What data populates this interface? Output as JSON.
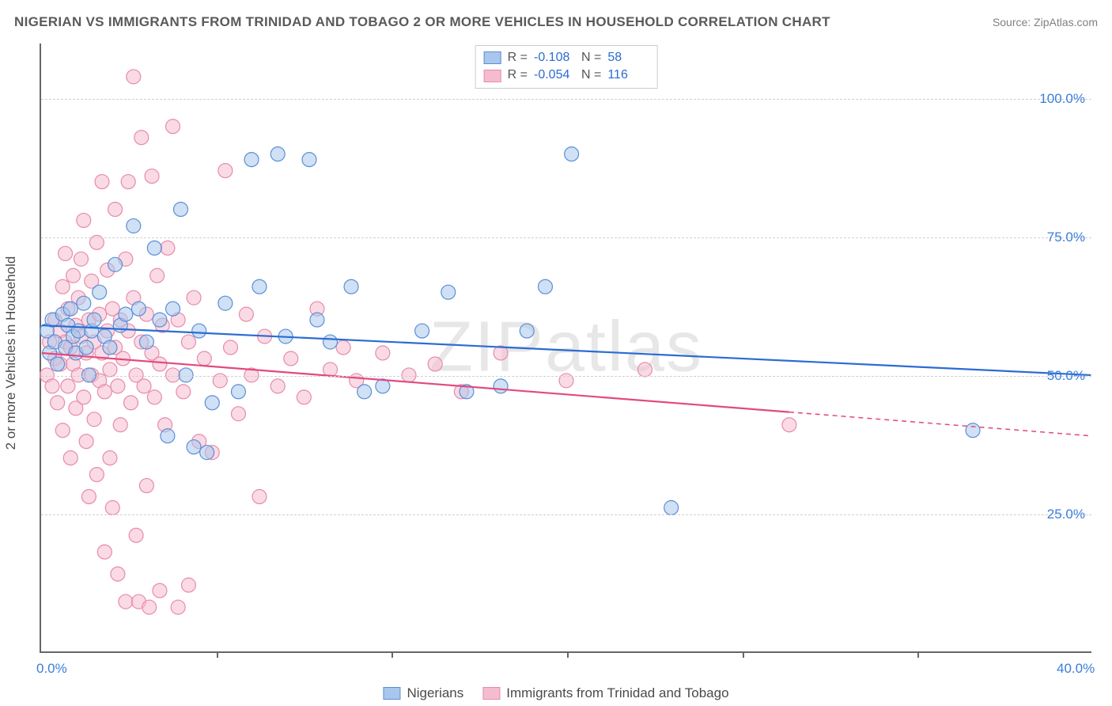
{
  "title": "NIGERIAN VS IMMIGRANTS FROM TRINIDAD AND TOBAGO 2 OR MORE VEHICLES IN HOUSEHOLD CORRELATION CHART",
  "source": "Source: ZipAtlas.com",
  "watermark": "ZIPatlas",
  "ylabel": "2 or more Vehicles in Household",
  "chart": {
    "type": "scatter",
    "background_color": "#ffffff",
    "grid_color": "#d0d0d0",
    "axis_color": "#666666",
    "tick_label_color": "#3b7dd8",
    "tick_fontsize": 17,
    "label_fontsize": 17,
    "title_fontsize": 17,
    "xlim": [
      0,
      40
    ],
    "ylim": [
      0,
      110
    ],
    "x_ticks": [
      0,
      40
    ],
    "x_tick_labels": [
      "0.0%",
      "40.0%"
    ],
    "x_minor_ticks": [
      6.67,
      13.33,
      20,
      26.67,
      33.33
    ],
    "y_gridlines": [
      25,
      50,
      75,
      100
    ],
    "y_tick_labels": [
      "25.0%",
      "50.0%",
      "75.0%",
      "100.0%"
    ],
    "marker_radius": 9,
    "marker_opacity": 0.55,
    "line_width": 2.2
  },
  "series": {
    "a": {
      "label": "Nigerians",
      "fill_color": "#a9c6ec",
      "stroke_color": "#5a8fd6",
      "line_color": "#2b6cd4",
      "R": "-0.108",
      "N": "58",
      "trend": {
        "x1": 0,
        "y1": 59,
        "x2": 40,
        "y2": 50,
        "solid_until": 40
      },
      "points": [
        [
          0.2,
          58
        ],
        [
          0.3,
          54
        ],
        [
          0.4,
          60
        ],
        [
          0.5,
          56
        ],
        [
          0.6,
          52
        ],
        [
          0.8,
          61
        ],
        [
          0.9,
          55
        ],
        [
          1.0,
          59
        ],
        [
          1.1,
          62
        ],
        [
          1.2,
          57
        ],
        [
          1.3,
          54
        ],
        [
          1.4,
          58
        ],
        [
          1.6,
          63
        ],
        [
          1.7,
          55
        ],
        [
          1.8,
          50
        ],
        [
          1.9,
          58
        ],
        [
          2.0,
          60
        ],
        [
          2.2,
          65
        ],
        [
          2.4,
          57
        ],
        [
          2.6,
          55
        ],
        [
          2.8,
          70
        ],
        [
          3.0,
          59
        ],
        [
          3.2,
          61
        ],
        [
          3.5,
          77
        ],
        [
          3.7,
          62
        ],
        [
          4.0,
          56
        ],
        [
          4.3,
          73
        ],
        [
          4.5,
          60
        ],
        [
          4.8,
          39
        ],
        [
          5.0,
          62
        ],
        [
          5.3,
          80
        ],
        [
          5.5,
          50
        ],
        [
          5.8,
          37
        ],
        [
          6.0,
          58
        ],
        [
          6.3,
          36
        ],
        [
          6.5,
          45
        ],
        [
          7.0,
          63
        ],
        [
          7.5,
          47
        ],
        [
          8.0,
          89
        ],
        [
          8.3,
          66
        ],
        [
          9.0,
          90
        ],
        [
          9.3,
          57
        ],
        [
          10.2,
          89
        ],
        [
          10.5,
          60
        ],
        [
          11.0,
          56
        ],
        [
          11.8,
          66
        ],
        [
          12.3,
          47
        ],
        [
          13.0,
          48
        ],
        [
          14.5,
          58
        ],
        [
          15.5,
          65
        ],
        [
          16.2,
          47
        ],
        [
          17.5,
          48
        ],
        [
          18.5,
          58
        ],
        [
          19.2,
          66
        ],
        [
          20.2,
          90
        ],
        [
          24.0,
          26
        ],
        [
          35.5,
          40
        ]
      ]
    },
    "b": {
      "label": "Immigrants from Trinidad and Tobago",
      "fill_color": "#f5bccf",
      "stroke_color": "#e88ba8",
      "line_color": "#e24a7f",
      "R": "-0.054",
      "N": "116",
      "trend": {
        "x1": 0,
        "y1": 54,
        "x2": 40,
        "y2": 39,
        "solid_until": 28.5
      },
      "points": [
        [
          0.2,
          50
        ],
        [
          0.3,
          56
        ],
        [
          0.4,
          48
        ],
        [
          0.5,
          53
        ],
        [
          0.5,
          60
        ],
        [
          0.6,
          45
        ],
        [
          0.7,
          58
        ],
        [
          0.7,
          52
        ],
        [
          0.8,
          66
        ],
        [
          0.8,
          40
        ],
        [
          0.9,
          56
        ],
        [
          0.9,
          72
        ],
        [
          1.0,
          62
        ],
        [
          1.0,
          48
        ],
        [
          1.1,
          55
        ],
        [
          1.1,
          35
        ],
        [
          1.2,
          68
        ],
        [
          1.2,
          52
        ],
        [
          1.3,
          59
        ],
        [
          1.3,
          44
        ],
        [
          1.4,
          64
        ],
        [
          1.4,
          50
        ],
        [
          1.5,
          57
        ],
        [
          1.5,
          71
        ],
        [
          1.6,
          46
        ],
        [
          1.6,
          78
        ],
        [
          1.7,
          54
        ],
        [
          1.7,
          38
        ],
        [
          1.8,
          60
        ],
        [
          1.8,
          28
        ],
        [
          1.9,
          50
        ],
        [
          1.9,
          67
        ],
        [
          2.0,
          42
        ],
        [
          2.0,
          56
        ],
        [
          2.1,
          32
        ],
        [
          2.1,
          74
        ],
        [
          2.2,
          49
        ],
        [
          2.2,
          61
        ],
        [
          2.3,
          54
        ],
        [
          2.3,
          85
        ],
        [
          2.4,
          47
        ],
        [
          2.4,
          18
        ],
        [
          2.5,
          58
        ],
        [
          2.5,
          69
        ],
        [
          2.6,
          51
        ],
        [
          2.6,
          35
        ],
        [
          2.7,
          62
        ],
        [
          2.7,
          26
        ],
        [
          2.8,
          55
        ],
        [
          2.8,
          80
        ],
        [
          2.9,
          48
        ],
        [
          2.9,
          14
        ],
        [
          3.0,
          60
        ],
        [
          3.0,
          41
        ],
        [
          3.1,
          53
        ],
        [
          3.2,
          71
        ],
        [
          3.2,
          9
        ],
        [
          3.3,
          58
        ],
        [
          3.3,
          85
        ],
        [
          3.4,
          45
        ],
        [
          3.5,
          64
        ],
        [
          3.5,
          104
        ],
        [
          3.6,
          50
        ],
        [
          3.6,
          21
        ],
        [
          3.7,
          9
        ],
        [
          3.8,
          56
        ],
        [
          3.8,
          93
        ],
        [
          3.9,
          48
        ],
        [
          4.0,
          61
        ],
        [
          4.0,
          30
        ],
        [
          4.1,
          8
        ],
        [
          4.2,
          54
        ],
        [
          4.2,
          86
        ],
        [
          4.3,
          46
        ],
        [
          4.4,
          68
        ],
        [
          4.5,
          52
        ],
        [
          4.5,
          11
        ],
        [
          4.6,
          59
        ],
        [
          4.7,
          41
        ],
        [
          4.8,
          73
        ],
        [
          5.0,
          50
        ],
        [
          5.0,
          95
        ],
        [
          5.2,
          60
        ],
        [
          5.2,
          8
        ],
        [
          5.4,
          47
        ],
        [
          5.6,
          56
        ],
        [
          5.6,
          12
        ],
        [
          5.8,
          64
        ],
        [
          6.0,
          38
        ],
        [
          6.2,
          53
        ],
        [
          6.5,
          36
        ],
        [
          6.8,
          49
        ],
        [
          7.0,
          87
        ],
        [
          7.2,
          55
        ],
        [
          7.5,
          43
        ],
        [
          7.8,
          61
        ],
        [
          8.0,
          50
        ],
        [
          8.3,
          28
        ],
        [
          8.5,
          57
        ],
        [
          9.0,
          48
        ],
        [
          9.5,
          53
        ],
        [
          10.0,
          46
        ],
        [
          10.5,
          62
        ],
        [
          11.0,
          51
        ],
        [
          11.5,
          55
        ],
        [
          12.0,
          49
        ],
        [
          13.0,
          54
        ],
        [
          14.0,
          50
        ],
        [
          15.0,
          52
        ],
        [
          16.0,
          47
        ],
        [
          17.5,
          54
        ],
        [
          20.0,
          49
        ],
        [
          23.0,
          51
        ],
        [
          28.5,
          41
        ]
      ]
    }
  },
  "stats_box": {
    "R_label": "R =",
    "N_label": "N ="
  }
}
